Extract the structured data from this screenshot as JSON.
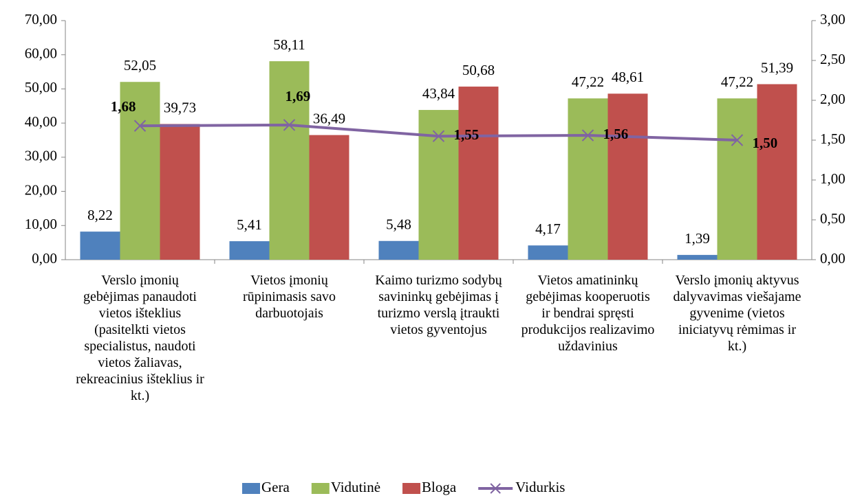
{
  "chart_data": {
    "type": "bar",
    "categories": [
      "Verslo įmonių gebėjimas panaudoti vietos išteklius (pasitelkti vietos specialistus, naudoti vietos žaliavas, rekreacinius išteklius ir kt.)",
      "Vietos įmonių rūpinimasis savo darbuotojais",
      "Kaimo turizmo sodybų savininkų gebėjimas į turizmo verslą įtraukti vietos gyventojus",
      "Vietos amatininkų gebėjimas kooperuotis ir bendrai spręsti produkcijos realizavimo uždavinius",
      "Verslo įmonių aktyvus dalyvavimas viešajame gyvenime (vietos iniciatyvų rėmimas ir kt.)"
    ],
    "series": [
      {
        "name": "Gera",
        "color": "#4f81bd",
        "type": "bar",
        "values": [
          8.22,
          5.41,
          5.48,
          4.17,
          1.39
        ],
        "value_labels": [
          "8,22",
          "5,41",
          "5,48",
          "4,17",
          "1,39"
        ]
      },
      {
        "name": "Vidutinė",
        "color": "#9bbb59",
        "type": "bar",
        "values": [
          52.05,
          58.11,
          43.84,
          47.22,
          47.22
        ],
        "value_labels": [
          "52,05",
          "58,11",
          "43,84",
          "47,22",
          "47,22"
        ]
      },
      {
        "name": "Bloga",
        "color": "#c0504d",
        "type": "bar",
        "values": [
          39.73,
          36.49,
          50.68,
          48.61,
          51.39
        ],
        "value_labels": [
          "39,73",
          "36,49",
          "50,68",
          "48,61",
          "51,39"
        ]
      },
      {
        "name": "Vidurkis",
        "color": "#8064a2",
        "type": "line",
        "axis": "y2",
        "values": [
          1.68,
          1.69,
          1.55,
          1.56,
          1.5
        ],
        "value_labels": [
          "1,68",
          "1,69",
          "1,55",
          "1,56",
          "1,50"
        ]
      }
    ],
    "ylim": [
      0,
      70
    ],
    "yticks": [
      {
        "value": 0,
        "label": "0,00"
      },
      {
        "value": 10,
        "label": "10,00"
      },
      {
        "value": 20,
        "label": "20,00"
      },
      {
        "value": 30,
        "label": "30,00"
      },
      {
        "value": 40,
        "label": "40,00"
      },
      {
        "value": 50,
        "label": "50,00"
      },
      {
        "value": 60,
        "label": "60,00"
      },
      {
        "value": 70,
        "label": "70,00"
      }
    ],
    "y2lim": [
      0,
      3
    ],
    "y2ticks": [
      {
        "value": 0,
        "label": "0,00"
      },
      {
        "value": 0.5,
        "label": "0,50"
      },
      {
        "value": 1,
        "label": "1,00"
      },
      {
        "value": 1.5,
        "label": "1,50"
      },
      {
        "value": 2,
        "label": "2,00"
      },
      {
        "value": 2.5,
        "label": "2,50"
      },
      {
        "value": 3,
        "label": "3,00"
      }
    ],
    "legend": "bottom"
  }
}
